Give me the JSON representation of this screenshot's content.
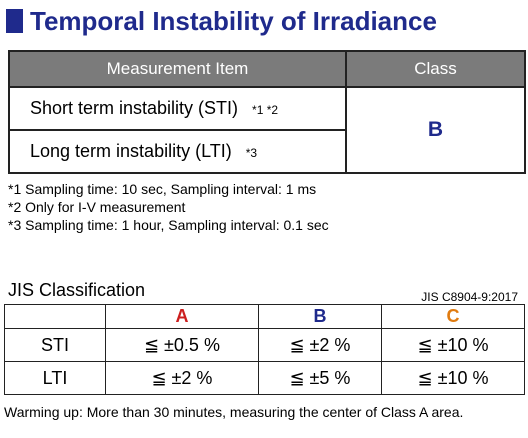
{
  "title": "Temporal Instability of Irradiance",
  "colors": {
    "accent_blue": "#1f2a8c",
    "header_gray": "#7b7b7b",
    "class_a_red": "#cc1f1f",
    "class_b_blue": "#1f2a8c",
    "class_c_orange": "#e07b10"
  },
  "main_table": {
    "headers": {
      "item": "Measurement Item",
      "class": "Class"
    },
    "rows": [
      {
        "item": "Short term instability (STI)",
        "note": "*1 *2"
      },
      {
        "item": "Long term instability (LTI)",
        "note": "*3"
      }
    ],
    "class_value": "B"
  },
  "footnotes": [
    "*1 Sampling time: 10 sec, Sampling interval: 1 ms",
    "*2 Only for I-V measurement",
    "*3 Sampling time: 1 hour, Sampling interval: 0.1 sec"
  ],
  "jis": {
    "title": "JIS Classification",
    "standard": "JIS C8904-9:2017",
    "headers": [
      "",
      "A",
      "B",
      "C"
    ],
    "rows": [
      {
        "label": "STI",
        "a": "≦ ±0.5 %",
        "b": "≦ ±2 %",
        "c": "≦ ±10 %"
      },
      {
        "label": "LTI",
        "a": "≦ ±2 %",
        "b": "≦ ±5 %",
        "c": "≦ ±10 %"
      }
    ]
  },
  "warming_note": "Warming up: More than 30 minutes, measuring the center of Class A area."
}
